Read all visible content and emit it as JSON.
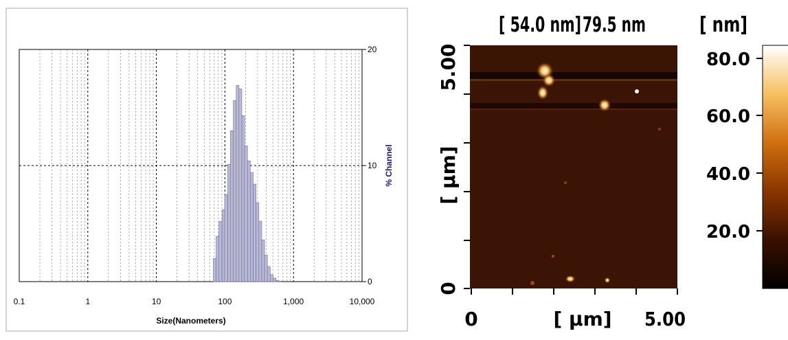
{
  "chart_data": [
    {
      "type": "bar",
      "title": "",
      "xlabel": "Size(Nanometers)",
      "ylabel": "% Channel",
      "xscale": "log",
      "xlim": [
        0.1,
        10000
      ],
      "ylim": [
        0,
        20
      ],
      "x_tick_labels": [
        "0.1",
        "1",
        "10",
        "100",
        "1,000",
        "10,000"
      ],
      "y_tick_labels": [
        "0",
        "10",
        "20"
      ],
      "grid": true,
      "bar_color": "#b9b9d6",
      "x": [
        71,
        78,
        86,
        95,
        104,
        115,
        126,
        139,
        153,
        168,
        185,
        203,
        224,
        246,
        271,
        298,
        328,
        361,
        397,
        437,
        481,
        529,
        582,
        640
      ],
      "values": [
        2.0,
        3.9,
        5.2,
        6.2,
        7.5,
        10.1,
        13.0,
        15.6,
        16.9,
        16.6,
        14.3,
        11.7,
        10.4,
        9.4,
        8.4,
        6.8,
        5.2,
        3.6,
        2.3,
        1.3,
        0.6,
        0.3,
        0.1,
        0.05
      ]
    },
    {
      "type": "heatmap",
      "title_parts": [
        "[ 54.0 nm]",
        "79.5 nm",
        "[ nm]"
      ],
      "xlabel": "[ μm]",
      "ylabel": "[ μm]",
      "x_tick_labels": [
        "0",
        "5.00"
      ],
      "y_tick_labels": [
        "0",
        "5.00"
      ],
      "colorbar_tick_labels": [
        "80.0",
        "60.0",
        "40.0",
        "20.0"
      ],
      "colorbar_colors": [
        "#000000",
        "#3a1000",
        "#8a3500",
        "#d07010",
        "#f6c060",
        "#ffffff"
      ],
      "background_color": "#3b1406"
    }
  ]
}
